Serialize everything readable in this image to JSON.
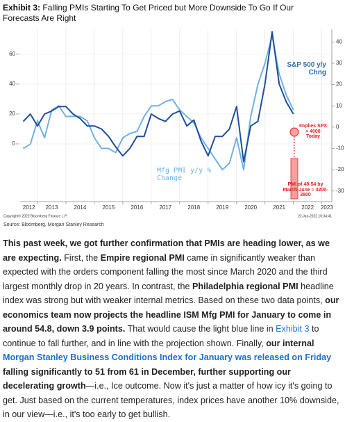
{
  "chart_data": {
    "type": "line",
    "title_label": "Exhibit 3:",
    "title": "Falling PMIs Starting To Get Priced but More Downside To Go If Our Forecasts Are Right",
    "x": [
      2012.5,
      2012.75,
      2013.0,
      2013.25,
      2013.5,
      2013.75,
      2014.0,
      2014.25,
      2014.5,
      2014.75,
      2015.0,
      2015.25,
      2015.5,
      2015.75,
      2016.0,
      2016.25,
      2016.5,
      2016.75,
      2017.0,
      2017.25,
      2017.5,
      2017.75,
      2018.0,
      2018.25,
      2018.5,
      2018.75,
      2019.0,
      2019.25,
      2019.5,
      2019.75,
      2020.0,
      2020.25,
      2020.5,
      2020.75,
      2021.0,
      2021.25,
      2021.5,
      2021.75,
      2022.0
    ],
    "series": [
      {
        "name": "S&P 500 y/y Chng",
        "color": "#1f4e9c",
        "values": [
          15,
          20,
          12,
          20,
          22,
          25,
          25,
          20,
          17,
          12,
          12,
          10,
          5,
          -2,
          -8,
          -3,
          5,
          5,
          20,
          17,
          15,
          20,
          22,
          12,
          16,
          2,
          -8,
          5,
          5,
          10,
          25,
          -12,
          12,
          15,
          40,
          75,
          40,
          28,
          20
        ]
      },
      {
        "name": "Mfg PMI y/y % Change",
        "color": "#6fb1e3",
        "axis": "y2",
        "values": [
          -10,
          -8,
          3,
          -5,
          8,
          10,
          5,
          5,
          5,
          3,
          -5,
          -10,
          -10,
          -12,
          -5,
          -3,
          -2,
          5,
          10,
          10,
          12,
          13,
          8,
          5,
          2,
          -5,
          -10,
          -15,
          -20,
          -17,
          -5,
          -20,
          5,
          20,
          30,
          43,
          25,
          15,
          8
        ]
      }
    ],
    "xlim": [
      2012.4,
      2023.35
    ],
    "xticks": [
      2012,
      2013,
      2014,
      2015,
      2016,
      2017,
      2018,
      2019,
      2020,
      2021,
      2022,
      2023
    ],
    "ylim": [
      -38.6,
      76.7
    ],
    "yticks": [
      0,
      20,
      40,
      60
    ],
    "y2lim": [
      -35,
      46
    ],
    "y2ticks": [
      40,
      30,
      20,
      10,
      0,
      -10,
      -20,
      -30
    ],
    "grid": true,
    "annotations": [
      "Implies SPX ≈ 4000 Today",
      "PMI of 48-54 by March-June ≈ 3200-3800"
    ],
    "copyright": "Copyright© 2022 Bloomberg Finance L.P.",
    "timestamp": "22-Jan-2022 10:34:41",
    "source": "Source: Bloomberg, Morgan Stanley Research"
  },
  "body": {
    "runs": [
      "This past week, we got further confirmation that PMIs are heading lower, as we are expecting.",
      " First, the ",
      "Empire regional PMI",
      " came in significantly weaker than expected with the orders component falling the most since March 2020 and the third largest monthly drop in 20 years. In contrast, the ",
      "Philadelphia regional PMI",
      " headline index was strong but with weaker internal metrics. Based on these two data points, ",
      "our economics team now projects the headline ISM Mfg PMI for January to come in around 54.8, down 3.9 points.",
      " That would cause the light blue line in ",
      "Exhibit 3",
      " to continue to fall further, and in line with the projection shown. Finally, ",
      "our internal ",
      "Morgan Stanley Business Conditions Index for January was released on Friday",
      " falling significantly to 51 from 61 in December, further supporting our decelerating growth",
      "—i.e., Ice outcome. Now it's just a matter of how icy it's going to get. Just based on the current temperatures, index prices have another 10% downside, in our view—i.e., it's too early to get bullish."
    ]
  }
}
